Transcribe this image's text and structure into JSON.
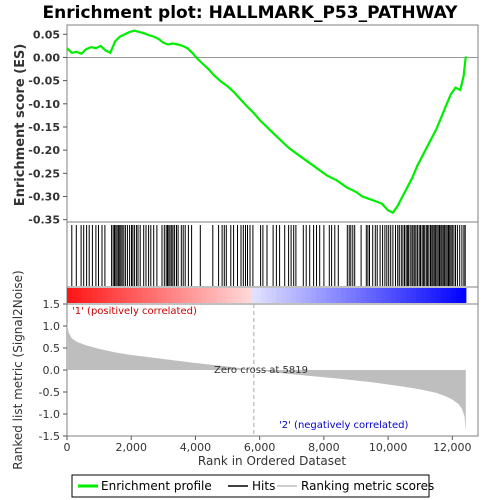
{
  "chart_data": {
    "type": "line",
    "title": "Enrichment plot: HALLMARK_P53_PATHWAY",
    "es_panel": {
      "ylabel": "Enrichment score (ES)",
      "ylim": [
        -0.355,
        0.07
      ],
      "yticks": [
        "0.05",
        "0.00",
        "-0.05",
        "-0.10",
        "-0.15",
        "-0.20",
        "-0.25",
        "-0.30",
        "-0.35"
      ],
      "ytick_values": [
        0.05,
        0.0,
        -0.05,
        -0.1,
        -0.15,
        -0.2,
        -0.25,
        -0.3,
        -0.35
      ],
      "series": [
        {
          "name": "Enrichment profile",
          "color": "#00ee00",
          "x": [
            0,
            150,
            300,
            450,
            600,
            750,
            900,
            1050,
            1200,
            1350,
            1500,
            1650,
            1800,
            1950,
            2100,
            2250,
            2400,
            2550,
            2700,
            2850,
            3000,
            3150,
            3300,
            3450,
            3600,
            3750,
            3900,
            4050,
            4200,
            4400,
            4600,
            4800,
            5000,
            5200,
            5400,
            5600,
            5819,
            6000,
            6300,
            6600,
            6900,
            7200,
            7500,
            7800,
            8100,
            8400,
            8700,
            9000,
            9200,
            9400,
            9600,
            9800,
            10000,
            10150,
            10300,
            10450,
            10600,
            10750,
            10900,
            11050,
            11200,
            11350,
            11500,
            11650,
            11800,
            11950,
            12100,
            12250,
            12350,
            12420
          ],
          "y": [
            0.02,
            0.01,
            0.012,
            0.008,
            0.018,
            0.022,
            0.02,
            0.025,
            0.015,
            0.01,
            0.035,
            0.045,
            0.05,
            0.055,
            0.058,
            0.055,
            0.052,
            0.048,
            0.045,
            0.04,
            0.032,
            0.028,
            0.03,
            0.028,
            0.025,
            0.02,
            0.01,
            -0.002,
            -0.012,
            -0.025,
            -0.04,
            -0.052,
            -0.062,
            -0.075,
            -0.09,
            -0.105,
            -0.12,
            -0.135,
            -0.155,
            -0.175,
            -0.195,
            -0.21,
            -0.225,
            -0.24,
            -0.255,
            -0.265,
            -0.28,
            -0.29,
            -0.3,
            -0.305,
            -0.31,
            -0.315,
            -0.33,
            -0.335,
            -0.32,
            -0.3,
            -0.28,
            -0.26,
            -0.235,
            -0.215,
            -0.195,
            -0.175,
            -0.155,
            -0.13,
            -0.105,
            -0.08,
            -0.065,
            -0.07,
            -0.04,
            0.002
          ]
        }
      ]
    },
    "hits_panel": {
      "hit_positions": [
        150,
        290,
        440,
        520,
        610,
        690,
        790,
        900,
        980,
        1090,
        1180,
        1390,
        1440,
        1480,
        1520,
        1560,
        1600,
        1640,
        1680,
        1720,
        1770,
        1820,
        1880,
        1950,
        2010,
        2050,
        2100,
        2160,
        2210,
        2280,
        2390,
        2460,
        2540,
        2610,
        2700,
        2800,
        2960,
        3030,
        3090,
        3130,
        3170,
        3210,
        3260,
        3300,
        3350,
        3410,
        3460,
        3560,
        3620,
        3680,
        3780,
        3880,
        4150,
        4540,
        4720,
        4830,
        4900,
        4960,
        5100,
        5190,
        5310,
        5420,
        5490,
        5560,
        5620,
        5700,
        5790,
        6030,
        6100,
        6230,
        6420,
        6520,
        6620,
        6780,
        6900,
        6980,
        7060,
        7130,
        7360,
        7450,
        7560,
        7680,
        7770,
        7870,
        8000,
        8170,
        8240,
        8340,
        8450,
        8730,
        8790,
        8840,
        8900,
        8960,
        9160,
        9320,
        9370,
        9420,
        9520,
        9600,
        9660,
        9750,
        9830,
        9900,
        9960,
        10020,
        10080,
        10150,
        10230,
        10300,
        10350,
        10410,
        10460,
        10510,
        10560,
        10600,
        10640,
        10690,
        10740,
        10780,
        10830,
        10870,
        10920,
        10970,
        11010,
        11060,
        11100,
        11140,
        11190,
        11230,
        11270,
        11320,
        11360,
        11400,
        11440,
        11480,
        11520,
        11560,
        11600,
        11640,
        11680,
        11720,
        11760,
        11800,
        11840,
        11880,
        11920,
        11960,
        12000,
        12050,
        12100,
        12160,
        12230,
        12300,
        12360,
        12400
      ]
    },
    "rank_panel": {
      "ylabel": "Ranked list metric (Signal2Noise)",
      "ylim": [
        -1.5,
        1.5
      ],
      "yticks": [
        "1.5",
        "1.0",
        "0.5",
        "0.0",
        "-0.5",
        "-1.0",
        "-1.5"
      ],
      "ytick_values": [
        1.5,
        1.0,
        0.5,
        0.0,
        -0.5,
        -1.0,
        -1.5
      ],
      "x": [
        0,
        50,
        150,
        300,
        600,
        1000,
        1500,
        2000,
        3000,
        4000,
        5000,
        5819,
        6500,
        7500,
        8500,
        9500,
        10500,
        11000,
        11500,
        11800,
        12000,
        12200,
        12300,
        12380,
        12420
      ],
      "y": [
        1.1,
        0.85,
        0.72,
        0.64,
        0.56,
        0.48,
        0.4,
        0.34,
        0.25,
        0.16,
        0.08,
        0.0,
        -0.06,
        -0.13,
        -0.2,
        -0.28,
        -0.38,
        -0.44,
        -0.52,
        -0.6,
        -0.67,
        -0.78,
        -0.88,
        -1.05,
        -1.4
      ],
      "fill_color": "#bebebe",
      "zero_cross_label": "Zero cross at 5819",
      "zero_cross": 5819,
      "pos_label": "'1' (positively correlated)",
      "neg_label": "'2' (negatively correlated)",
      "pos_color": "#ff0000",
      "neg_color": "#0000ff"
    },
    "xlabel": "Rank in Ordered Dataset",
    "xlim": [
      0,
      12800
    ],
    "xticks": [
      "0",
      "2,000",
      "4,000",
      "6,000",
      "8,000",
      "10,000",
      "12,000"
    ],
    "xtick_values": [
      0,
      2000,
      4000,
      6000,
      8000,
      10000,
      12000
    ],
    "legend": {
      "placement": "bottom",
      "items": [
        {
          "label": "Enrichment profile",
          "color": "#00ee00"
        },
        {
          "label": "Hits",
          "color": "#000000"
        },
        {
          "label": "Ranking metric scores",
          "color": "#bebebe"
        }
      ]
    }
  }
}
